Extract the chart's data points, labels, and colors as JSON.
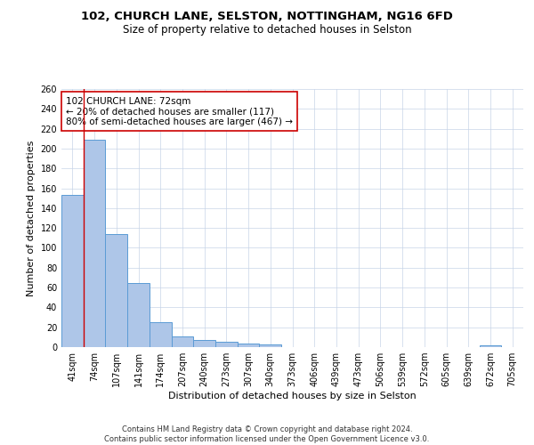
{
  "title1": "102, CHURCH LANE, SELSTON, NOTTINGHAM, NG16 6FD",
  "title2": "Size of property relative to detached houses in Selston",
  "xlabel": "Distribution of detached houses by size in Selston",
  "ylabel": "Number of detached properties",
  "footnote": "Contains HM Land Registry data © Crown copyright and database right 2024.\nContains public sector information licensed under the Open Government Licence v3.0.",
  "categories": [
    "41sqm",
    "74sqm",
    "107sqm",
    "141sqm",
    "174sqm",
    "207sqm",
    "240sqm",
    "273sqm",
    "307sqm",
    "340sqm",
    "373sqm",
    "406sqm",
    "439sqm",
    "473sqm",
    "506sqm",
    "539sqm",
    "572sqm",
    "605sqm",
    "639sqm",
    "672sqm",
    "705sqm"
  ],
  "values": [
    153,
    209,
    114,
    65,
    25,
    11,
    7,
    5,
    4,
    3,
    0,
    0,
    0,
    0,
    0,
    0,
    0,
    0,
    0,
    2,
    0
  ],
  "bar_color": "#aec6e8",
  "bar_edge_color": "#5b9bd5",
  "highlight_label": "102 CHURCH LANE: 72sqm",
  "annotation_line1": "← 20% of detached houses are smaller (117)",
  "annotation_line2": "80% of semi-detached houses are larger (467) →",
  "vline_color": "#cc0000",
  "vline_position": 0.5,
  "ylim": [
    0,
    260
  ],
  "yticks": [
    0,
    20,
    40,
    60,
    80,
    100,
    120,
    140,
    160,
    180,
    200,
    220,
    240,
    260
  ],
  "background_color": "#ffffff",
  "grid_color": "#c8d4e8",
  "title1_fontsize": 9.5,
  "title2_fontsize": 8.5,
  "xlabel_fontsize": 8,
  "ylabel_fontsize": 8,
  "tick_fontsize": 7,
  "annotation_fontsize": 7.5
}
